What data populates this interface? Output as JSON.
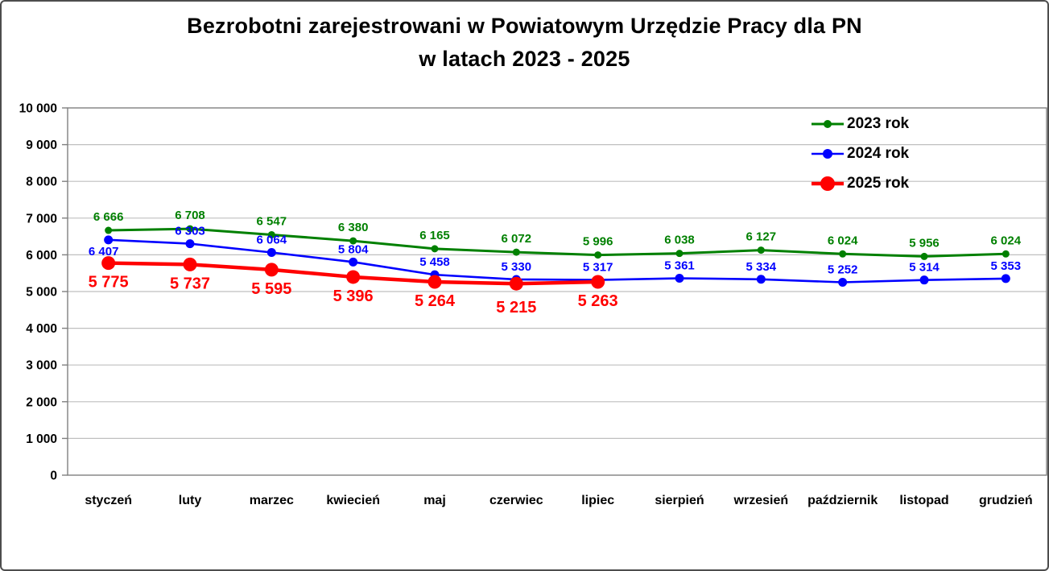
{
  "title": {
    "line1": "Bezrobotni zarejestrowani w Powiatowym Urzędzie Pracy dla PN",
    "line2": "w latach 2023 - 2025"
  },
  "colors": {
    "series_2023": "#008000",
    "series_2024": "#0000FF",
    "series_2025": "#FF0000",
    "gridline": "#BFBFBF",
    "axis_border": "#808080",
    "text": "#000000"
  },
  "chart_data": {
    "type": "line",
    "title": "Bezrobotni zarejestrowani w Powiatowym Urzędzie Pracy dla PN w latach 2023 - 2025",
    "categories": [
      "styczeń",
      "luty",
      "marzec",
      "kwiecień",
      "maj",
      "czerwiec",
      "lipiec",
      "sierpień",
      "wrzesień",
      "październik",
      "listopad",
      "grudzień"
    ],
    "series": [
      {
        "name": "2023 rok",
        "color": "#008000",
        "values": [
          6666,
          6708,
          6547,
          6380,
          6165,
          6072,
          5996,
          6038,
          6127,
          6024,
          5956,
          6024
        ],
        "labels": [
          "6 666",
          "6 708",
          "6 547",
          "6 380",
          "6 165",
          "6 072",
          "5 996",
          "6 038",
          "6 127",
          "6 024",
          "5 956",
          "6 024"
        ],
        "label_position": "above"
      },
      {
        "name": "2024 rok",
        "color": "#0000FF",
        "values": [
          6407,
          6303,
          6064,
          5804,
          5458,
          5330,
          5317,
          5361,
          5334,
          5252,
          5314,
          5353
        ],
        "labels": [
          "6 407",
          "6 303",
          "6 064",
          "5 804",
          "5 458",
          "5 330",
          "5 317",
          "5 361",
          "5 334",
          "5 252",
          "5 314",
          "5 353"
        ],
        "label_position": "above"
      },
      {
        "name": "2025 rok",
        "color": "#FF0000",
        "values": [
          5775,
          5737,
          5595,
          5396,
          5264,
          5215,
          5263
        ],
        "labels": [
          "5 775",
          "5 737",
          "5 595",
          "5 396",
          "5 264",
          "5 215",
          "5 263"
        ],
        "label_position": "below"
      }
    ],
    "y_axis": {
      "min": 0,
      "max": 10000,
      "step": 1000,
      "tick_labels": [
        "0",
        "1 000",
        "2 000",
        "3 000",
        "4 000",
        "5 000",
        "6 000",
        "7 000",
        "8 000",
        "9 000",
        "10 000"
      ]
    },
    "grid": true,
    "legend_position": "top-right",
    "legend": {
      "items": [
        {
          "label": "2023 rok",
          "color": "#008000"
        },
        {
          "label": "2024 rok",
          "color": "#0000FF"
        },
        {
          "label": "2025 rok",
          "color": "#FF0000"
        }
      ]
    }
  }
}
